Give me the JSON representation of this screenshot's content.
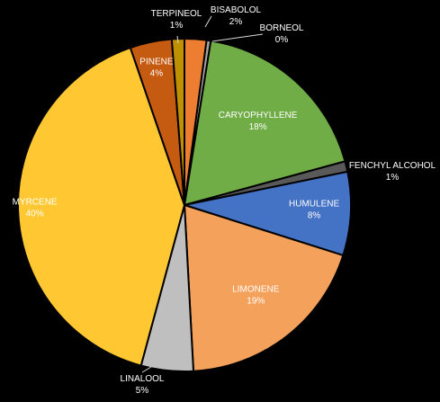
{
  "chart_data": {
    "type": "pie",
    "title": "",
    "start": "top, clockwise",
    "slices": [
      {
        "name": "BISABOLOL",
        "percent_label": "2%",
        "value": 2.1,
        "color": "#ED7D31",
        "label_color": "#ffffff"
      },
      {
        "name": "BORNEOL",
        "percent_label": "0%",
        "value": 0.4,
        "color": "#A5A5A5",
        "label_color": "#ffffff"
      },
      {
        "name": "CARYOPHYLLENE",
        "percent_label": "18%",
        "value": 18.0,
        "color": "#70AD47",
        "label_color": "#ffffff"
      },
      {
        "name": "FENCHYL ALCOHOL",
        "percent_label": "1%",
        "value": 1.0,
        "color": "#595959",
        "label_color": "#ffffff"
      },
      {
        "name": "HUMULENE",
        "percent_label": "8%",
        "value": 8.0,
        "color": "#4472C4",
        "label_color": "#ffffff"
      },
      {
        "name": "LIMONENE",
        "percent_label": "19%",
        "value": 19.0,
        "color": "#F4A15C",
        "label_color": "#ffffff"
      },
      {
        "name": "LINALOOL",
        "percent_label": "5%",
        "value": 5.0,
        "color": "#BFBFBF",
        "label_color": "#ffffff"
      },
      {
        "name": "MYRCENE",
        "percent_label": "40%",
        "value": 40.0,
        "color": "#FFC832",
        "label_color": "#ffffff"
      },
      {
        "name": "PINENE",
        "percent_label": "4%",
        "value": 4.0,
        "color": "#C55A11",
        "label_color": "#ffffff"
      },
      {
        "name": "TERPINEOL",
        "percent_label": "1%",
        "value": 1.2,
        "color": "#BF9000",
        "label_color": "#ffffff"
      }
    ]
  }
}
